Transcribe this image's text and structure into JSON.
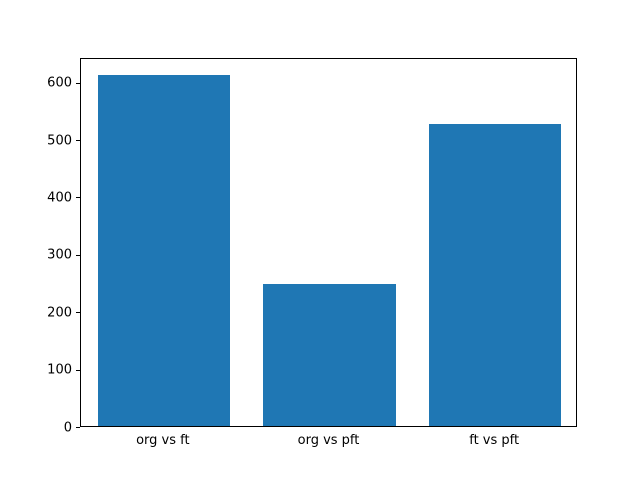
{
  "chart_data": {
    "type": "bar",
    "title": "",
    "xlabel": "",
    "ylabel": "",
    "categories": [
      "org vs ft",
      "org vs pft",
      "ft vs pft"
    ],
    "values": [
      612,
      248,
      527
    ],
    "ylim": [
      0,
      643
    ],
    "yticks": [
      0,
      100,
      200,
      300,
      400,
      500,
      600
    ],
    "bar_color": "#1f77b4",
    "background_color": "#ffffff",
    "spine_color": "#000000",
    "grid": false,
    "legend": false,
    "bar_width_fraction": 0.2667
  }
}
